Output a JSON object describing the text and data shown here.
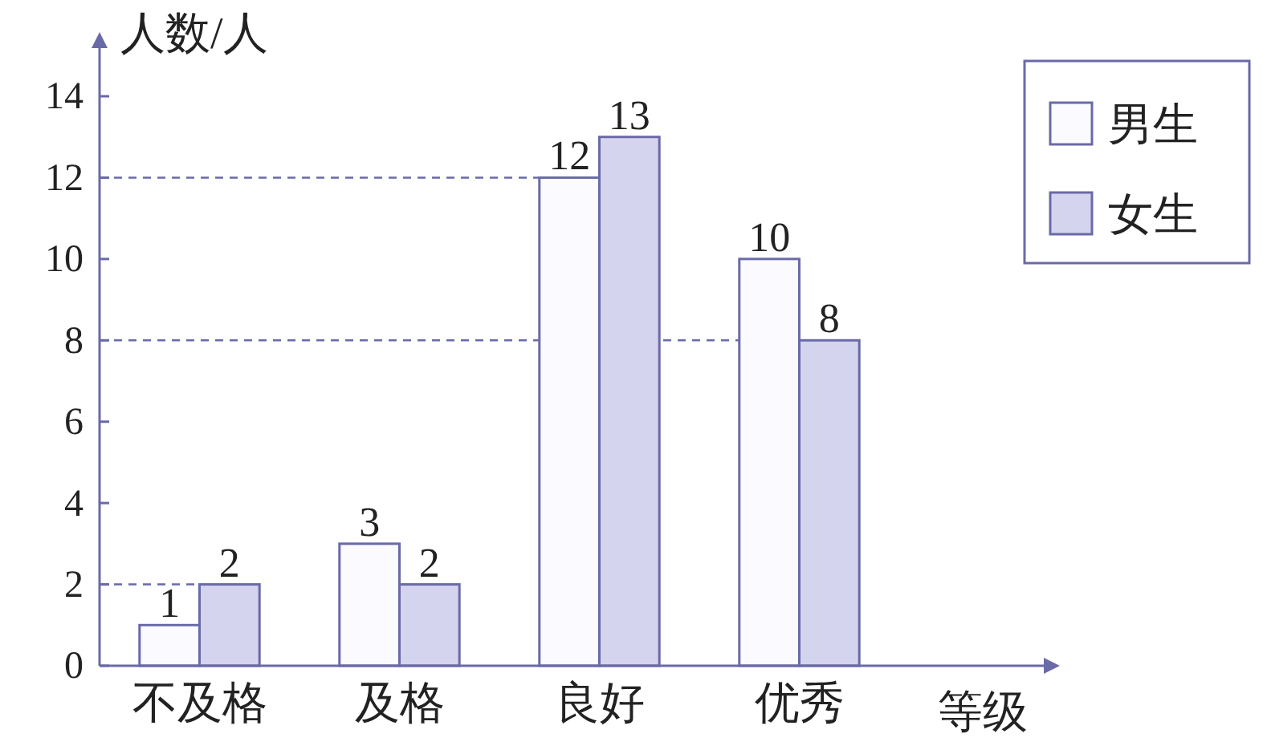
{
  "chart_data": {
    "type": "bar",
    "xlabel": "等级",
    "ylabel": "人数/人",
    "categories": [
      "不及格",
      "及格",
      "良好",
      "优秀"
    ],
    "series": [
      {
        "name": "男生",
        "color": "#fbfbff",
        "values": [
          1,
          3,
          12,
          10
        ]
      },
      {
        "name": "女生",
        "color": "#d4d4ef",
        "values": [
          2,
          2,
          13,
          8
        ]
      }
    ],
    "ylim": [
      0,
      14
    ],
    "yticks": [
      0,
      2,
      4,
      6,
      8,
      10,
      12,
      14
    ],
    "ref_lines": [
      {
        "axis": "y",
        "value": 2,
        "line_style": "dashed",
        "color": "#6a6aa8"
      },
      {
        "axis": "y",
        "value": 8,
        "line_style": "dashed",
        "color": "#6a6aa8"
      },
      {
        "axis": "y",
        "value": 12,
        "line_style": "dashed",
        "color": "#6a6aa8"
      }
    ],
    "data_labels": true,
    "grid": false,
    "legend": "top right"
  }
}
